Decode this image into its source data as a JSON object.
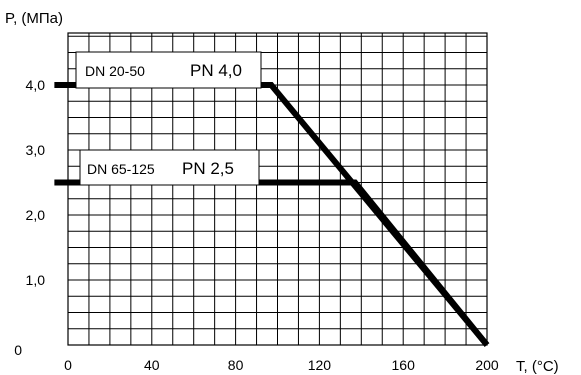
{
  "chart_data": {
    "type": "line",
    "xlabel": "T, (°C)",
    "ylabel": "P, (МПа)",
    "xlim": [
      0,
      200
    ],
    "ylim": [
      0,
      4.8
    ],
    "x_ticks": [
      0,
      40,
      80,
      120,
      160,
      200
    ],
    "x_tick_labels": [
      "0",
      "40",
      "80",
      "120",
      "160",
      "200"
    ],
    "y_ticks": [
      0,
      1,
      2,
      3,
      4
    ],
    "y_tick_labels": [
      "0",
      "1,0",
      "2,0",
      "3,0",
      "4,0"
    ],
    "grid": true,
    "series": [
      {
        "name_parts": [
          "DN 20-50",
          "PN 4,0"
        ],
        "x": [
          -6.5,
          97,
          200
        ],
        "y": [
          4.0,
          4.0,
          0.0
        ]
      },
      {
        "name_parts": [
          "DN 65-125",
          "PN 2,5"
        ],
        "x": [
          -6.5,
          137,
          200
        ],
        "y": [
          2.5,
          2.5,
          0.0
        ]
      }
    ]
  }
}
